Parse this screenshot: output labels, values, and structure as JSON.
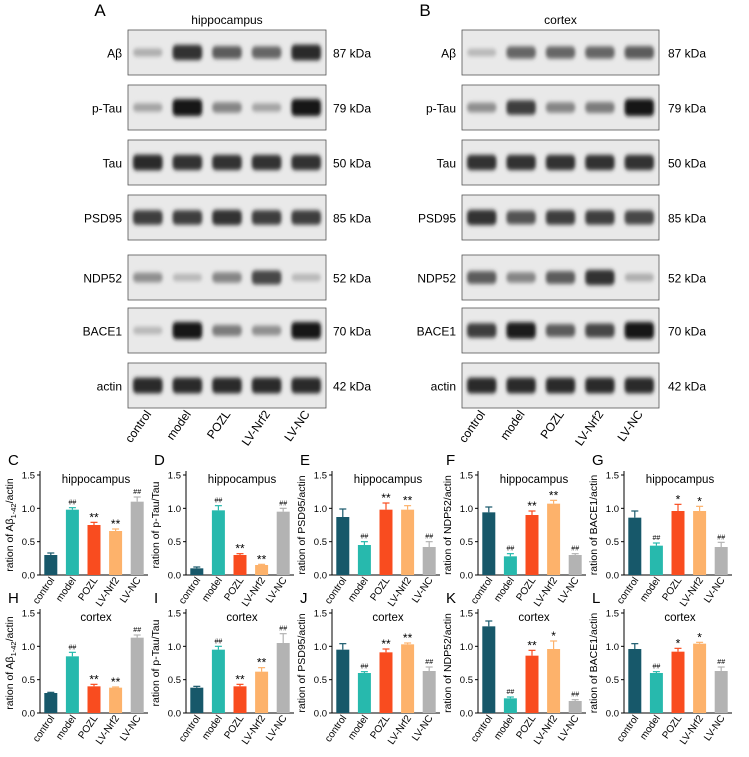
{
  "western_blot": {
    "lanes": [
      "control",
      "model",
      "POZL",
      "LV-Nrf2",
      "LV-NC"
    ],
    "bands": [
      {
        "name": "Aβ",
        "kda": "87 kDa"
      },
      {
        "name": "p-Tau",
        "kda": "79 kDa"
      },
      {
        "name": "Tau",
        "kda": "50 kDa"
      },
      {
        "name": "PSD95",
        "kda": "85 kDa"
      },
      {
        "name": "NDP52",
        "kda": "52 kDa"
      },
      {
        "name": "BACE1",
        "kda": "70 kDa"
      },
      {
        "name": "actin",
        "kda": "42 kDa"
      }
    ],
    "panels": [
      {
        "letter": "A",
        "title": "hippocampus",
        "intensities": [
          [
            0.25,
            0.85,
            0.65,
            0.6,
            0.9
          ],
          [
            0.3,
            1.0,
            0.45,
            0.3,
            1.0
          ],
          [
            0.9,
            0.85,
            0.85,
            0.85,
            0.85
          ],
          [
            0.8,
            0.8,
            0.85,
            0.8,
            0.8
          ],
          [
            0.4,
            0.2,
            0.45,
            0.75,
            0.2
          ],
          [
            0.2,
            1.0,
            0.5,
            0.4,
            1.0
          ],
          [
            0.9,
            0.9,
            0.9,
            0.9,
            0.9
          ]
        ]
      },
      {
        "letter": "B",
        "title": "cortex",
        "intensities": [
          [
            0.2,
            0.6,
            0.6,
            0.6,
            0.65
          ],
          [
            0.4,
            0.8,
            0.45,
            0.5,
            1.0
          ],
          [
            0.85,
            0.85,
            0.85,
            0.85,
            0.85
          ],
          [
            0.85,
            0.7,
            0.8,
            0.8,
            0.75
          ],
          [
            0.65,
            0.45,
            0.65,
            0.85,
            0.25
          ],
          [
            0.8,
            0.95,
            0.65,
            0.75,
            1.0
          ],
          [
            0.9,
            0.9,
            0.9,
            0.9,
            0.9
          ]
        ]
      }
    ]
  },
  "colors": [
    "#17586a",
    "#27b9ad",
    "#f94c1f",
    "#fdb26b",
    "#b3b3b3"
  ],
  "chart_data": [
    {
      "letter": "C",
      "type": "bar",
      "title": "hippocampus",
      "ylabel": "ration of Aβ1-42/actin",
      "ylim": [
        0,
        1.5
      ],
      "yticks": [
        "0.0",
        "0.5",
        "1.0",
        "1.5"
      ],
      "categories": [
        "control",
        "model",
        "POZL",
        "LV-Nrf2",
        "LV-NC"
      ],
      "values": [
        0.3,
        0.98,
        0.75,
        0.66,
        1.1
      ],
      "errors": [
        0.03,
        0.03,
        0.04,
        0.03,
        0.07
      ],
      "annotations": [
        "",
        "##",
        "**",
        "**",
        "##"
      ]
    },
    {
      "letter": "D",
      "type": "bar",
      "title": "hippocampus",
      "ylabel": "ration of p-Tau/Tau",
      "ylim": [
        0,
        1.5
      ],
      "yticks": [
        "0.0",
        "0.5",
        "1.0",
        "1.5"
      ],
      "categories": [
        "control",
        "model",
        "POZL",
        "LV-Nrf2",
        "LV-NC"
      ],
      "values": [
        0.1,
        0.97,
        0.3,
        0.15,
        0.95
      ],
      "errors": [
        0.02,
        0.07,
        0.02,
        0.01,
        0.05
      ],
      "annotations": [
        "",
        "##",
        "**",
        "**",
        "##"
      ]
    },
    {
      "letter": "E",
      "type": "bar",
      "title": "hippocampus",
      "ylabel": "ration of PSD95/actin",
      "ylim": [
        0,
        1.5
      ],
      "yticks": [
        "0.0",
        "0.5",
        "1.0",
        "1.5"
      ],
      "categories": [
        "control",
        "model",
        "POZL",
        "LV-Nrf2",
        "LV-NC"
      ],
      "values": [
        0.87,
        0.45,
        0.98,
        0.98,
        0.42
      ],
      "errors": [
        0.12,
        0.05,
        0.1,
        0.06,
        0.08
      ],
      "annotations": [
        "",
        "##",
        "**",
        "**",
        "##"
      ]
    },
    {
      "letter": "F",
      "type": "bar",
      "title": "hippocampus",
      "ylabel": "ration of NDP52/actin",
      "ylim": [
        0,
        1.5
      ],
      "yticks": [
        "0.0",
        "0.5",
        "1.0",
        "1.5"
      ],
      "categories": [
        "control",
        "model",
        "POZL",
        "LV-Nrf2",
        "LV-NC"
      ],
      "values": [
        0.94,
        0.28,
        0.9,
        1.07,
        0.3
      ],
      "errors": [
        0.08,
        0.04,
        0.06,
        0.05,
        0.02
      ],
      "annotations": [
        "",
        "##",
        "**",
        "**",
        "##"
      ]
    },
    {
      "letter": "G",
      "type": "bar",
      "title": "hippocampus",
      "ylabel": "ration of BACE1/actin",
      "ylim": [
        0,
        1.5
      ],
      "yticks": [
        "0.0",
        "0.5",
        "1.0",
        "1.5"
      ],
      "categories": [
        "control",
        "model",
        "POZL",
        "LV-Nrf2",
        "LV-NC"
      ],
      "values": [
        0.86,
        0.44,
        0.96,
        0.96,
        0.42
      ],
      "errors": [
        0.1,
        0.04,
        0.1,
        0.07,
        0.07
      ],
      "annotations": [
        "",
        "##",
        "*",
        "*",
        "##"
      ]
    },
    {
      "letter": "H",
      "type": "bar",
      "title": "cortex",
      "ylabel": "ration of Aβ1-42/actin",
      "ylim": [
        0,
        1.5
      ],
      "yticks": [
        "0.0",
        "0.5",
        "1.0",
        "1.5"
      ],
      "categories": [
        "control",
        "model",
        "POZL",
        "LV-Nrf2",
        "LV-NC"
      ],
      "values": [
        0.3,
        0.85,
        0.4,
        0.38,
        1.13
      ],
      "errors": [
        0.01,
        0.06,
        0.03,
        0.01,
        0.04
      ],
      "annotations": [
        "",
        "##",
        "**",
        "**",
        "##"
      ]
    },
    {
      "letter": "I",
      "type": "bar",
      "title": "cortex",
      "ylabel": "ration of p-Tau/Tau",
      "ylim": [
        0,
        1.5
      ],
      "yticks": [
        "0.0",
        "0.5",
        "1.0",
        "1.5"
      ],
      "categories": [
        "control",
        "model",
        "POZL",
        "LV-Nrf2",
        "LV-NC"
      ],
      "values": [
        0.38,
        0.95,
        0.4,
        0.62,
        1.05
      ],
      "errors": [
        0.02,
        0.05,
        0.03,
        0.06,
        0.14
      ],
      "annotations": [
        "",
        "##",
        "**",
        "**",
        "##"
      ]
    },
    {
      "letter": "J",
      "type": "bar",
      "title": "cortex",
      "ylabel": "ration of PSD95/actin",
      "ylim": [
        0,
        1.5
      ],
      "yticks": [
        "0.0",
        "0.5",
        "1.0",
        "1.5"
      ],
      "categories": [
        "control",
        "model",
        "POZL",
        "LV-Nrf2",
        "LV-NC"
      ],
      "values": [
        0.95,
        0.6,
        0.91,
        1.03,
        0.63
      ],
      "errors": [
        0.09,
        0.02,
        0.05,
        0.02,
        0.06
      ],
      "annotations": [
        "",
        "##",
        "**",
        "**",
        "##"
      ]
    },
    {
      "letter": "K",
      "type": "bar",
      "title": "cortex",
      "ylabel": "ration of NDP52/actin",
      "ylim": [
        0,
        1.5
      ],
      "yticks": [
        "0.0",
        "0.5",
        "1.0",
        "1.5"
      ],
      "categories": [
        "control",
        "model",
        "POZL",
        "LV-Nrf2",
        "LV-NC"
      ],
      "values": [
        1.3,
        0.22,
        0.86,
        0.96,
        0.18
      ],
      "errors": [
        0.08,
        0.02,
        0.08,
        0.12,
        0.02
      ],
      "annotations": [
        "",
        "##",
        "**",
        "*",
        "##"
      ]
    },
    {
      "letter": "L",
      "type": "bar",
      "title": "cortex",
      "ylabel": "ration of BACE1/actin",
      "ylim": [
        0,
        1.5
      ],
      "yticks": [
        "0.0",
        "0.5",
        "1.0",
        "1.5"
      ],
      "categories": [
        "control",
        "model",
        "POZL",
        "LV-Nrf2",
        "LV-NC"
      ],
      "values": [
        0.96,
        0.6,
        0.92,
        1.04,
        0.63
      ],
      "errors": [
        0.08,
        0.02,
        0.05,
        0.02,
        0.06
      ],
      "annotations": [
        "",
        "##",
        "*",
        "*",
        "##"
      ]
    }
  ]
}
